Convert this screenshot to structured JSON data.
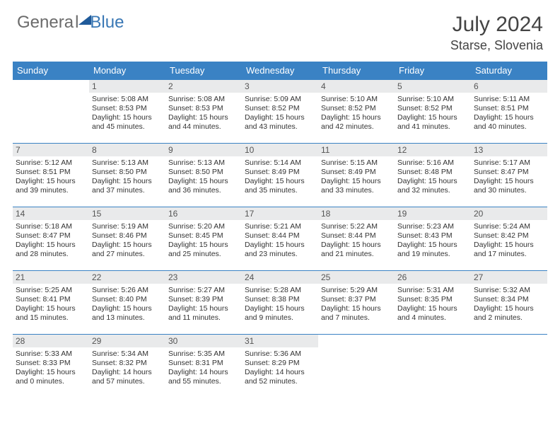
{
  "logo": {
    "part1": "Genera",
    "part2": "l",
    "part3": "Blue"
  },
  "title": "July 2024",
  "location": "Starse, Slovenia",
  "weekdays": [
    "Sunday",
    "Monday",
    "Tuesday",
    "Wednesday",
    "Thursday",
    "Friday",
    "Saturday"
  ],
  "colors": {
    "header_bg": "#3a82c4",
    "header_text": "#ffffff",
    "daynum_bg": "#e9eaeb",
    "border": "#3a82c4",
    "logo_gray": "#6b6b6b",
    "logo_blue": "#3a78b5"
  },
  "cells": [
    [
      {
        "n": "",
        "sr": "",
        "ss": "",
        "dl": ""
      },
      {
        "n": "1",
        "sr": "Sunrise: 5:08 AM",
        "ss": "Sunset: 8:53 PM",
        "dl": "Daylight: 15 hours and 45 minutes."
      },
      {
        "n": "2",
        "sr": "Sunrise: 5:08 AM",
        "ss": "Sunset: 8:53 PM",
        "dl": "Daylight: 15 hours and 44 minutes."
      },
      {
        "n": "3",
        "sr": "Sunrise: 5:09 AM",
        "ss": "Sunset: 8:52 PM",
        "dl": "Daylight: 15 hours and 43 minutes."
      },
      {
        "n": "4",
        "sr": "Sunrise: 5:10 AM",
        "ss": "Sunset: 8:52 PM",
        "dl": "Daylight: 15 hours and 42 minutes."
      },
      {
        "n": "5",
        "sr": "Sunrise: 5:10 AM",
        "ss": "Sunset: 8:52 PM",
        "dl": "Daylight: 15 hours and 41 minutes."
      },
      {
        "n": "6",
        "sr": "Sunrise: 5:11 AM",
        "ss": "Sunset: 8:51 PM",
        "dl": "Daylight: 15 hours and 40 minutes."
      }
    ],
    [
      {
        "n": "7",
        "sr": "Sunrise: 5:12 AM",
        "ss": "Sunset: 8:51 PM",
        "dl": "Daylight: 15 hours and 39 minutes."
      },
      {
        "n": "8",
        "sr": "Sunrise: 5:13 AM",
        "ss": "Sunset: 8:50 PM",
        "dl": "Daylight: 15 hours and 37 minutes."
      },
      {
        "n": "9",
        "sr": "Sunrise: 5:13 AM",
        "ss": "Sunset: 8:50 PM",
        "dl": "Daylight: 15 hours and 36 minutes."
      },
      {
        "n": "10",
        "sr": "Sunrise: 5:14 AM",
        "ss": "Sunset: 8:49 PM",
        "dl": "Daylight: 15 hours and 35 minutes."
      },
      {
        "n": "11",
        "sr": "Sunrise: 5:15 AM",
        "ss": "Sunset: 8:49 PM",
        "dl": "Daylight: 15 hours and 33 minutes."
      },
      {
        "n": "12",
        "sr": "Sunrise: 5:16 AM",
        "ss": "Sunset: 8:48 PM",
        "dl": "Daylight: 15 hours and 32 minutes."
      },
      {
        "n": "13",
        "sr": "Sunrise: 5:17 AM",
        "ss": "Sunset: 8:47 PM",
        "dl": "Daylight: 15 hours and 30 minutes."
      }
    ],
    [
      {
        "n": "14",
        "sr": "Sunrise: 5:18 AM",
        "ss": "Sunset: 8:47 PM",
        "dl": "Daylight: 15 hours and 28 minutes."
      },
      {
        "n": "15",
        "sr": "Sunrise: 5:19 AM",
        "ss": "Sunset: 8:46 PM",
        "dl": "Daylight: 15 hours and 27 minutes."
      },
      {
        "n": "16",
        "sr": "Sunrise: 5:20 AM",
        "ss": "Sunset: 8:45 PM",
        "dl": "Daylight: 15 hours and 25 minutes."
      },
      {
        "n": "17",
        "sr": "Sunrise: 5:21 AM",
        "ss": "Sunset: 8:44 PM",
        "dl": "Daylight: 15 hours and 23 minutes."
      },
      {
        "n": "18",
        "sr": "Sunrise: 5:22 AM",
        "ss": "Sunset: 8:44 PM",
        "dl": "Daylight: 15 hours and 21 minutes."
      },
      {
        "n": "19",
        "sr": "Sunrise: 5:23 AM",
        "ss": "Sunset: 8:43 PM",
        "dl": "Daylight: 15 hours and 19 minutes."
      },
      {
        "n": "20",
        "sr": "Sunrise: 5:24 AM",
        "ss": "Sunset: 8:42 PM",
        "dl": "Daylight: 15 hours and 17 minutes."
      }
    ],
    [
      {
        "n": "21",
        "sr": "Sunrise: 5:25 AM",
        "ss": "Sunset: 8:41 PM",
        "dl": "Daylight: 15 hours and 15 minutes."
      },
      {
        "n": "22",
        "sr": "Sunrise: 5:26 AM",
        "ss": "Sunset: 8:40 PM",
        "dl": "Daylight: 15 hours and 13 minutes."
      },
      {
        "n": "23",
        "sr": "Sunrise: 5:27 AM",
        "ss": "Sunset: 8:39 PM",
        "dl": "Daylight: 15 hours and 11 minutes."
      },
      {
        "n": "24",
        "sr": "Sunrise: 5:28 AM",
        "ss": "Sunset: 8:38 PM",
        "dl": "Daylight: 15 hours and 9 minutes."
      },
      {
        "n": "25",
        "sr": "Sunrise: 5:29 AM",
        "ss": "Sunset: 8:37 PM",
        "dl": "Daylight: 15 hours and 7 minutes."
      },
      {
        "n": "26",
        "sr": "Sunrise: 5:31 AM",
        "ss": "Sunset: 8:35 PM",
        "dl": "Daylight: 15 hours and 4 minutes."
      },
      {
        "n": "27",
        "sr": "Sunrise: 5:32 AM",
        "ss": "Sunset: 8:34 PM",
        "dl": "Daylight: 15 hours and 2 minutes."
      }
    ],
    [
      {
        "n": "28",
        "sr": "Sunrise: 5:33 AM",
        "ss": "Sunset: 8:33 PM",
        "dl": "Daylight: 15 hours and 0 minutes."
      },
      {
        "n": "29",
        "sr": "Sunrise: 5:34 AM",
        "ss": "Sunset: 8:32 PM",
        "dl": "Daylight: 14 hours and 57 minutes."
      },
      {
        "n": "30",
        "sr": "Sunrise: 5:35 AM",
        "ss": "Sunset: 8:31 PM",
        "dl": "Daylight: 14 hours and 55 minutes."
      },
      {
        "n": "31",
        "sr": "Sunrise: 5:36 AM",
        "ss": "Sunset: 8:29 PM",
        "dl": "Daylight: 14 hours and 52 minutes."
      },
      {
        "n": "",
        "sr": "",
        "ss": "",
        "dl": ""
      },
      {
        "n": "",
        "sr": "",
        "ss": "",
        "dl": ""
      },
      {
        "n": "",
        "sr": "",
        "ss": "",
        "dl": ""
      }
    ]
  ]
}
